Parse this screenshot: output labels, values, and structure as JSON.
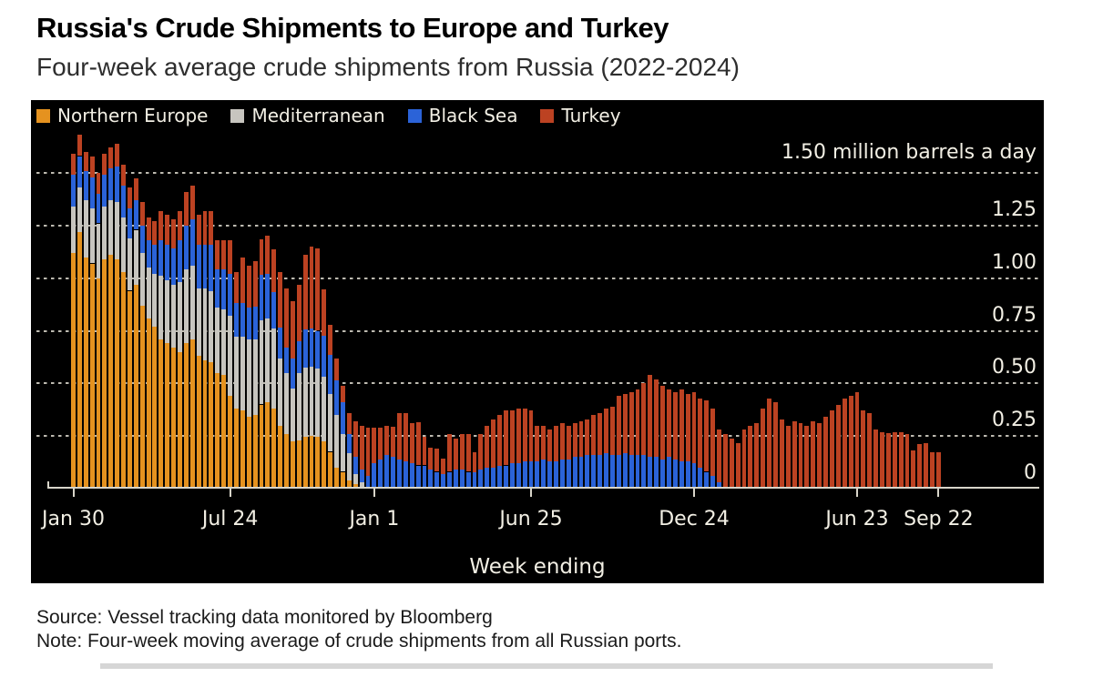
{
  "header": {
    "title": "Russia's Crude Shipments to Europe and Turkey",
    "subtitle": "Four-week average crude shipments from Russia (2022-2024)"
  },
  "footer": {
    "source_line": "Source: Vessel tracking data monitored by Bloomberg",
    "note_line": "Note: Four-week moving average of crude shipments from all Russian ports."
  },
  "colors": {
    "panel_background": "#000000",
    "axis_text": "#f2efe4",
    "axis_line": "#d8d5ca",
    "northern_europe": "#E5921F",
    "mediterranean": "#C7C5BF",
    "black_sea": "#2B63D8",
    "turkey": "#BC4222"
  },
  "chart_data": {
    "type": "bar",
    "subtype": "stacked-weekly-bars",
    "title": "Russia's Crude Shipments to Europe and Turkey",
    "subtitle": "Four-week average crude shipments from Russia (2022-2024)",
    "unit_label": "1.50 million barrels a day",
    "xlabel": "Week ending",
    "ylabel": "million barrels a day",
    "ylim": [
      0,
      1.5
    ],
    "grid": "dotted horizontal",
    "legend_position": "top-left inside plot",
    "y_gridlines": [
      1.5,
      1.25,
      1.0,
      0.75,
      0.5,
      0.25
    ],
    "y_ticks": [
      {
        "value": 1.25,
        "label": "1.25"
      },
      {
        "value": 1.0,
        "label": "1.00"
      },
      {
        "value": 0.75,
        "label": "0.75"
      },
      {
        "value": 0.5,
        "label": "0.50"
      },
      {
        "value": 0.25,
        "label": "0.25"
      },
      {
        "value": 0.0,
        "label": "0"
      }
    ],
    "n_weeks": 139,
    "x_range_note": "weekly bars, week ending Jan 30 2022 through Sep 22 2024",
    "x_ticks": [
      {
        "index": 0,
        "label": "Jan 30"
      },
      {
        "index": 25,
        "label": "Jul 24"
      },
      {
        "index": 48,
        "label": "Jan 1"
      },
      {
        "index": 73,
        "label": "Jun 25"
      },
      {
        "index": 99,
        "label": "Dec 24"
      },
      {
        "index": 125,
        "label": "Jun 23"
      },
      {
        "index": 138,
        "label": "Sep 22"
      }
    ],
    "series": [
      {
        "name": "Northern Europe",
        "color": "#E5921F",
        "values": [
          1.12,
          1.22,
          1.1,
          1.07,
          1.0,
          1.09,
          1.11,
          1.09,
          1.03,
          0.94,
          0.97,
          0.87,
          0.81,
          0.77,
          0.71,
          0.69,
          0.67,
          0.65,
          0.69,
          0.71,
          0.63,
          0.61,
          0.6,
          0.55,
          0.54,
          0.44,
          0.38,
          0.37,
          0.34,
          0.35,
          0.4,
          0.41,
          0.38,
          0.3,
          0.26,
          0.225,
          0.23,
          0.245,
          0.25,
          0.245,
          0.225,
          0.175,
          0.1,
          0.08,
          0.04,
          0.02,
          0.01,
          0,
          0,
          0,
          0,
          0,
          0,
          0,
          0,
          0,
          0,
          0,
          0,
          0,
          0,
          0,
          0,
          0,
          0,
          0,
          0,
          0,
          0,
          0,
          0,
          0,
          0,
          0,
          0,
          0,
          0,
          0,
          0,
          0,
          0,
          0,
          0,
          0,
          0,
          0,
          0,
          0,
          0,
          0,
          0,
          0,
          0,
          0,
          0,
          0,
          0,
          0,
          0,
          0,
          0,
          0,
          0,
          0,
          0,
          0,
          0,
          0,
          0,
          0,
          0,
          0,
          0,
          0,
          0,
          0,
          0,
          0,
          0,
          0,
          0,
          0,
          0,
          0,
          0,
          0,
          0,
          0,
          0,
          0,
          0,
          0,
          0,
          0,
          0,
          0,
          0,
          0,
          0
        ]
      },
      {
        "name": "Mediterranean",
        "color": "#C7C5BF",
        "values": [
          0.22,
          0.21,
          0.27,
          0.26,
          0.26,
          0.25,
          0.26,
          0.27,
          0.26,
          0.25,
          0.26,
          0.25,
          0.24,
          0.25,
          0.3,
          0.3,
          0.3,
          0.33,
          0.35,
          0.35,
          0.32,
          0.34,
          0.34,
          0.31,
          0.31,
          0.38,
          0.34,
          0.35,
          0.37,
          0.36,
          0.4,
          0.4,
          0.38,
          0.32,
          0.29,
          0.25,
          0.32,
          0.33,
          0.33,
          0.325,
          0.305,
          0.275,
          0.25,
          0.18,
          0.13,
          0.05,
          0.02,
          0.01,
          0,
          0,
          0,
          0,
          0,
          0,
          0,
          0,
          0,
          0,
          0,
          0,
          0,
          0,
          0,
          0,
          0,
          0,
          0,
          0,
          0,
          0,
          0,
          0,
          0,
          0,
          0,
          0,
          0,
          0,
          0,
          0,
          0,
          0,
          0,
          0,
          0,
          0,
          0,
          0,
          0,
          0,
          0,
          0,
          0,
          0,
          0,
          0,
          0,
          0,
          0,
          0,
          0,
          0,
          0,
          0,
          0,
          0,
          0,
          0,
          0,
          0,
          0,
          0,
          0,
          0,
          0,
          0,
          0,
          0,
          0,
          0,
          0,
          0,
          0,
          0,
          0,
          0,
          0,
          0,
          0,
          0,
          0,
          0,
          0,
          0,
          0,
          0,
          0,
          0,
          0
        ]
      },
      {
        "name": "Black Sea",
        "color": "#2B63D8",
        "values": [
          0.15,
          0.15,
          0.14,
          0.15,
          0.14,
          0.15,
          0.15,
          0.17,
          0.15,
          0.14,
          0.14,
          0.13,
          0.13,
          0.14,
          0.17,
          0.17,
          0.17,
          0.2,
          0.21,
          0.22,
          0.21,
          0.21,
          0.22,
          0.18,
          0.19,
          0.2,
          0.16,
          0.16,
          0.15,
          0.155,
          0.215,
          0.21,
          0.175,
          0.145,
          0.12,
          0.145,
          0.15,
          0.18,
          0.18,
          0.18,
          0.195,
          0.185,
          0.165,
          0.15,
          0.09,
          0.08,
          0.06,
          0.05,
          0.12,
          0.14,
          0.16,
          0.15,
          0.14,
          0.13,
          0.12,
          0.11,
          0.11,
          0.09,
          0.08,
          0.07,
          0.08,
          0.09,
          0.09,
          0.08,
          0.08,
          0.09,
          0.1,
          0.1,
          0.11,
          0.11,
          0.12,
          0.12,
          0.13,
          0.13,
          0.13,
          0.14,
          0.13,
          0.13,
          0.14,
          0.14,
          0.15,
          0.15,
          0.16,
          0.16,
          0.16,
          0.17,
          0.16,
          0.16,
          0.17,
          0.16,
          0.16,
          0.16,
          0.15,
          0.15,
          0.14,
          0.15,
          0.14,
          0.13,
          0.13,
          0.12,
          0.1,
          0.08,
          0.06,
          0.03,
          0,
          0,
          0,
          0,
          0,
          0,
          0,
          0,
          0,
          0,
          0,
          0,
          0,
          0,
          0,
          0,
          0,
          0,
          0,
          0,
          0,
          0,
          0,
          0,
          0,
          0,
          0,
          0,
          0,
          0,
          0,
          0,
          0
        ]
      },
      {
        "name": "Turkey",
        "color": "#BC4222",
        "values": [
          0.1,
          0.1,
          0.09,
          0.1,
          0.1,
          0.1,
          0.1,
          0.11,
          0.1,
          0.1,
          0.105,
          0.11,
          0.11,
          0.11,
          0.14,
          0.14,
          0.14,
          0.14,
          0.16,
          0.16,
          0.14,
          0.16,
          0.16,
          0.14,
          0.14,
          0.16,
          0.15,
          0.22,
          0.2,
          0.215,
          0.17,
          0.18,
          0.2,
          0.265,
          0.28,
          0.27,
          0.27,
          0.355,
          0.39,
          0.39,
          0.22,
          0.145,
          0.105,
          0.08,
          0.1,
          0.17,
          0.21,
          0.23,
          0.17,
          0.15,
          0.14,
          0.145,
          0.22,
          0.23,
          0.19,
          0.205,
          0.135,
          0.105,
          0.11,
          0.075,
          0.18,
          0.15,
          0.17,
          0.18,
          0.095,
          0.17,
          0.2,
          0.23,
          0.24,
          0.26,
          0.25,
          0.26,
          0.25,
          0.24,
          0.17,
          0.16,
          0.15,
          0.17,
          0.17,
          0.16,
          0.16,
          0.17,
          0.17,
          0.19,
          0.2,
          0.21,
          0.23,
          0.28,
          0.28,
          0.3,
          0.31,
          0.34,
          0.39,
          0.37,
          0.35,
          0.32,
          0.32,
          0.34,
          0.32,
          0.34,
          0.33,
          0.34,
          0.32,
          0.25,
          0.26,
          0.24,
          0.215,
          0.28,
          0.3,
          0.31,
          0.38,
          0.43,
          0.41,
          0.33,
          0.3,
          0.32,
          0.31,
          0.3,
          0.32,
          0.31,
          0.34,
          0.37,
          0.4,
          0.43,
          0.44,
          0.46,
          0.37,
          0.36,
          0.28,
          0.27,
          0.265,
          0.27,
          0.27,
          0.26,
          0.18,
          0.21,
          0.215,
          0.175,
          0.175
        ]
      }
    ]
  }
}
